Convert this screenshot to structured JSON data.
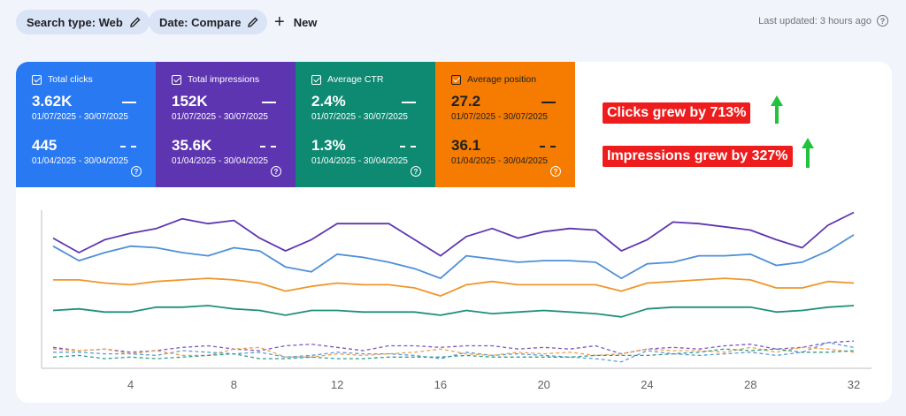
{
  "filters": {
    "search_type": "Search type: Web",
    "date": "Date: Compare",
    "new_label": "New"
  },
  "last_updated": "Last updated: 3 hours ago",
  "metrics": [
    {
      "label": "Total clicks",
      "value": "3.62K",
      "range": "01/07/2025 - 30/07/2025",
      "compare_value": "445",
      "compare_range": "01/04/2025 - 30/04/2025",
      "color": "#2979f2"
    },
    {
      "label": "Total impressions",
      "value": "152K",
      "range": "01/07/2025 - 30/07/2025",
      "compare_value": "35.6K",
      "compare_range": "01/04/2025 - 30/04/2025",
      "color": "#5e35b1"
    },
    {
      "label": "Average CTR",
      "value": "2.4%",
      "range": "01/07/2025 - 30/07/2025",
      "compare_value": "1.3%",
      "compare_range": "01/04/2025 - 30/04/2025",
      "color": "#0f8a72"
    },
    {
      "label": "Average position",
      "value": "27.2",
      "range": "01/07/2025 - 30/07/2025",
      "compare_value": "36.1",
      "compare_range": "01/04/2025 - 30/04/2025",
      "color": "#f57c00"
    }
  ],
  "callouts": {
    "clicks": "Clicks grew by 713%",
    "impressions": "Impressions grew by 327%",
    "arrow_color": "#22c33a"
  },
  "chart_data": {
    "type": "line",
    "x": [
      1,
      2,
      3,
      4,
      5,
      6,
      7,
      8,
      9,
      10,
      11,
      12,
      13,
      14,
      15,
      16,
      17,
      18,
      19,
      20,
      21,
      22,
      23,
      24,
      25,
      26,
      27,
      28,
      29,
      30,
      31,
      32
    ],
    "xticks": [
      "4",
      "8",
      "12",
      "16",
      "20",
      "24",
      "28",
      "32"
    ],
    "xtick_values": [
      4,
      8,
      12,
      16,
      20,
      24,
      28,
      32
    ],
    "series": [
      {
        "metric": "impressions",
        "style": "solid",
        "color": "#5e35b1",
        "values": [
          8.1,
          7.2,
          8.0,
          8.4,
          8.7,
          9.3,
          9.0,
          9.2,
          8.1,
          7.3,
          8.0,
          9.0,
          9.0,
          9.0,
          8.0,
          7.0,
          8.2,
          8.7,
          8.1,
          8.5,
          8.7,
          8.6,
          7.3,
          8.0,
          9.1,
          9.0,
          8.8,
          8.6,
          8.0,
          7.5,
          8.9,
          9.7
        ]
      },
      {
        "metric": "clicks",
        "style": "solid",
        "color": "#4f8fd8",
        "values": [
          7.6,
          6.7,
          7.2,
          7.6,
          7.5,
          7.2,
          7.0,
          7.5,
          7.3,
          6.3,
          6.0,
          7.1,
          6.9,
          6.6,
          6.2,
          5.6,
          7.0,
          6.8,
          6.6,
          6.7,
          6.7,
          6.6,
          5.6,
          6.5,
          6.6,
          7.0,
          7.0,
          7.1,
          6.4,
          6.6,
          7.3,
          8.3
        ]
      },
      {
        "metric": "position",
        "style": "solid",
        "color": "#f0962a",
        "values": [
          5.5,
          5.5,
          5.3,
          5.2,
          5.4,
          5.5,
          5.6,
          5.5,
          5.3,
          4.8,
          5.1,
          5.3,
          5.2,
          5.2,
          5.0,
          4.5,
          5.2,
          5.4,
          5.2,
          5.2,
          5.2,
          5.2,
          4.8,
          5.3,
          5.4,
          5.5,
          5.6,
          5.5,
          5.0,
          5.0,
          5.4,
          5.3
        ]
      },
      {
        "metric": "ctr",
        "style": "solid",
        "color": "#1f9178",
        "values": [
          3.6,
          3.7,
          3.5,
          3.5,
          3.8,
          3.8,
          3.9,
          3.7,
          3.6,
          3.3,
          3.6,
          3.6,
          3.5,
          3.5,
          3.5,
          3.3,
          3.6,
          3.4,
          3.5,
          3.6,
          3.5,
          3.4,
          3.2,
          3.7,
          3.8,
          3.8,
          3.8,
          3.8,
          3.5,
          3.6,
          3.8,
          3.9
        ]
      },
      {
        "metric": "impressions_compare",
        "style": "dashed",
        "color": "#7e57c2",
        "values": [
          1.3,
          1.1,
          1.2,
          1.0,
          1.1,
          1.3,
          1.4,
          1.2,
          1.1,
          1.4,
          1.5,
          1.3,
          1.1,
          1.4,
          1.4,
          1.3,
          1.4,
          1.4,
          1.2,
          1.3,
          1.2,
          1.4,
          0.9,
          1.2,
          1.3,
          1.2,
          1.4,
          1.5,
          1.2,
          1.3,
          1.6,
          1.7
        ]
      },
      {
        "metric": "clicks_compare",
        "style": "dashed",
        "color": "#5b9be0",
        "values": [
          1.0,
          1.0,
          0.9,
          0.9,
          0.8,
          1.1,
          1.0,
          0.9,
          1.0,
          0.7,
          0.8,
          1.0,
          0.9,
          0.9,
          0.8,
          0.6,
          1.0,
          0.8,
          0.9,
          0.8,
          0.7,
          0.6,
          0.4,
          1.1,
          0.9,
          0.8,
          0.9,
          1.0,
          0.8,
          1.0,
          1.6,
          1.3
        ]
      },
      {
        "metric": "position_compare",
        "style": "dashed",
        "color": "#f0a04b",
        "values": [
          1.2,
          1.1,
          1.2,
          0.9,
          1.1,
          0.8,
          0.8,
          1.2,
          1.3,
          0.7,
          0.7,
          0.9,
          0.8,
          0.9,
          1.0,
          1.2,
          0.9,
          0.8,
          1.0,
          0.9,
          1.0,
          0.8,
          0.9,
          1.2,
          1.1,
          1.1,
          1.0,
          1.3,
          1.0,
          1.3,
          1.2,
          1.0
        ]
      },
      {
        "metric": "ctr_compare",
        "style": "dashed",
        "color": "#2f9e83",
        "values": [
          0.7,
          0.8,
          0.6,
          0.7,
          0.6,
          0.7,
          0.8,
          0.9,
          0.6,
          0.6,
          0.7,
          0.6,
          0.6,
          0.7,
          0.7,
          0.7,
          0.8,
          0.7,
          0.7,
          0.7,
          0.7,
          0.8,
          0.8,
          0.8,
          0.9,
          1.0,
          1.2,
          1.1,
          1.2,
          1.0,
          1.0,
          1.1
        ]
      }
    ],
    "ylim": [
      0,
      10
    ],
    "grid": false
  }
}
